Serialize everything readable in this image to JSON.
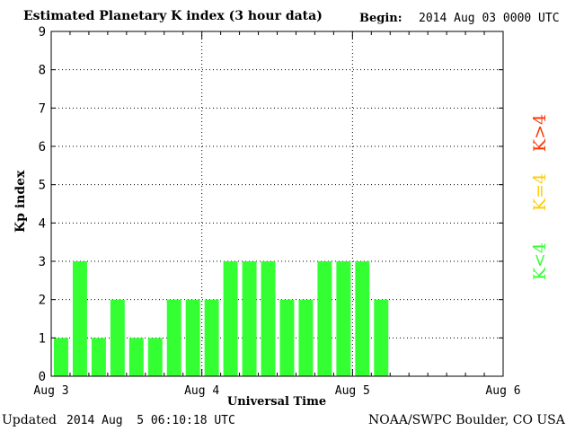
{
  "header": {
    "title": "Estimated Planetary K index (3 hour data)",
    "begin_label": "Begin:",
    "begin_value": "2014 Aug 03 0000 UTC"
  },
  "footer": {
    "updated_label": "Updated",
    "updated_value": "2014 Aug  5 06:10:18 UTC",
    "credit": "NOAA/SWPC Boulder, CO USA"
  },
  "legend": {
    "high": {
      "label": "K>4",
      "color": "#ff3300"
    },
    "equal": {
      "label": "K=4",
      "color": "#ffcc00"
    },
    "low": {
      "label": "K<4",
      "color": "#33ff33"
    }
  },
  "chart_data": {
    "type": "bar",
    "title": "Estimated Planetary K index (3 hour data)",
    "xlabel": "Universal Time",
    "ylabel": "Kp index",
    "ylim": [
      0,
      9
    ],
    "yticks": [
      0,
      1,
      2,
      3,
      4,
      5,
      6,
      7,
      8,
      9
    ],
    "x_tick_labels": [
      "Aug 3",
      "Aug 4",
      "Aug 5",
      "Aug 6"
    ],
    "bins_per_day": 8,
    "grid": true,
    "bar_color": "#33ff33",
    "series": [
      {
        "values": [
          1,
          3,
          1,
          2,
          1,
          1,
          2,
          2,
          2,
          3,
          3,
          3,
          2,
          2,
          3,
          3,
          3,
          2
        ]
      }
    ]
  }
}
